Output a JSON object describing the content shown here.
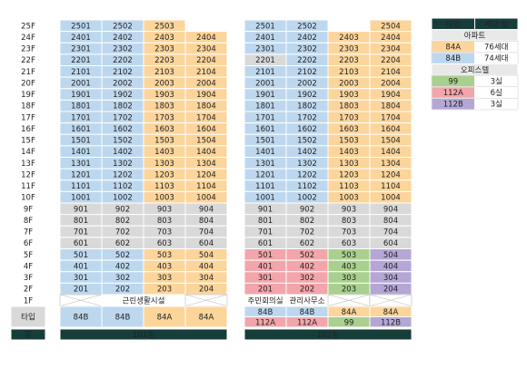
{
  "floor_labels": [
    "25F",
    "24F",
    "23F",
    "22F",
    "21F",
    "20F",
    "19F",
    "18F",
    "17F",
    "16F",
    "15F",
    "14F",
    "13F",
    "12F",
    "11F",
    "10F",
    "9F",
    "8F",
    "7F",
    "6F",
    "5F",
    "4F",
    "3F",
    "2F",
    "1F"
  ],
  "type_label": "타입",
  "dong_label": "동",
  "buildings": [
    {
      "name": "101동",
      "units": [
        [
          "2501",
          "2502",
          "2503",
          null
        ],
        [
          "2401",
          "2402",
          "2403",
          "2404"
        ],
        [
          "2301",
          "2302",
          "2303",
          "2304"
        ],
        [
          "2201",
          "2202",
          "2203",
          "2204"
        ],
        [
          "2101",
          "2102",
          "2103",
          "2104"
        ],
        [
          "2001",
          "2002",
          "2003",
          "2004"
        ],
        [
          "1901",
          "1902",
          "1903",
          "1904"
        ],
        [
          "1801",
          "1802",
          "1803",
          "1804"
        ],
        [
          "1701",
          "1702",
          "1703",
          "1704"
        ],
        [
          "1601",
          "1602",
          "1603",
          "1604"
        ],
        [
          "1501",
          "1502",
          "1503",
          "1504"
        ],
        [
          "1401",
          "1402",
          "1403",
          "1404"
        ],
        [
          "1301",
          "1302",
          "1303",
          "1304"
        ],
        [
          "1201",
          "1202",
          "1203",
          "1204"
        ],
        [
          "1101",
          "1102",
          "1103",
          "1104"
        ],
        [
          "1001",
          "1002",
          "1003",
          "1004"
        ],
        [
          "901",
          "902",
          "903",
          "904"
        ],
        [
          "801",
          "802",
          "803",
          "804"
        ],
        [
          "701",
          "702",
          "703",
          "704"
        ],
        [
          "601",
          "602",
          "603",
          "604"
        ],
        [
          "501",
          "502",
          "503",
          "504"
        ],
        [
          "401",
          "402",
          "403",
          "404"
        ],
        [
          "301",
          "302",
          "303",
          "304"
        ],
        [
          "201",
          "202",
          "203",
          "204"
        ]
      ],
      "first_floor": [
        "근린생활시설"
      ],
      "types": [
        "84B",
        "84B",
        "84A",
        "84A"
      ]
    },
    {
      "name": "102동",
      "units": [
        [
          "2501",
          "2502",
          null,
          "2504"
        ],
        [
          "2401",
          "2402",
          "2403",
          "2404"
        ],
        [
          "2301",
          "2302",
          "2303",
          "2304"
        ],
        [
          "2201",
          "2202",
          "2203",
          "2204"
        ],
        [
          "2101",
          "2102",
          "2103",
          "2104"
        ],
        [
          "2001",
          "2002",
          "2003",
          "2004"
        ],
        [
          "1901",
          "1902",
          "1903",
          "1904"
        ],
        [
          "1801",
          "1802",
          "1803",
          "1804"
        ],
        [
          "1701",
          "1702",
          "1703",
          "1704"
        ],
        [
          "1601",
          "1602",
          "1603",
          "1604"
        ],
        [
          "1501",
          "1502",
          "1503",
          "1504"
        ],
        [
          "1401",
          "1402",
          "1403",
          "1404"
        ],
        [
          "1301",
          "1302",
          "1303",
          "1304"
        ],
        [
          "1201",
          "1202",
          "1203",
          "1204"
        ],
        [
          "1101",
          "1102",
          "1103",
          "1104"
        ],
        [
          "1001",
          "1002",
          "1003",
          "1004"
        ],
        [
          "901",
          "902",
          "903",
          "904"
        ],
        [
          "801",
          "802",
          "803",
          "804"
        ],
        [
          "701",
          "702",
          "703",
          "704"
        ],
        [
          "601",
          "602",
          "603",
          "604"
        ],
        [
          "501",
          "502",
          "503",
          "504"
        ],
        [
          "401",
          "402",
          "403",
          "404"
        ],
        [
          "301",
          "302",
          "303",
          "304"
        ],
        [
          "201",
          "202",
          "203",
          "204"
        ]
      ],
      "first_floor": [
        "주민회의실",
        "관리사무소"
      ],
      "types": [
        "84B",
        "84B",
        "84A",
        "84A"
      ],
      "types_2": [
        "112A",
        "112A",
        "99",
        "112B"
      ]
    }
  ],
  "legend": {
    "headers": [
      "타입",
      "세대·실"
    ],
    "groups": [
      {
        "name": "아파트",
        "rows": [
          [
            "84A",
            "76세대"
          ],
          [
            "84B",
            "74세대"
          ]
        ]
      },
      {
        "name": "오피스텔",
        "rows": [
          [
            "99",
            "3실"
          ],
          [
            "112A",
            "6실"
          ],
          [
            "112B",
            "3실"
          ]
        ]
      }
    ]
  },
  "colors": {
    "84A": "#fcd59b",
    "84B": "#bdd7ee",
    "99": "#a9d08e",
    "112A": "#f2a5aa",
    "112B": "#b4a7d6",
    "common": "#d9d9d9",
    "dark": "#173d3a",
    "group": "#e8e8e8"
  }
}
